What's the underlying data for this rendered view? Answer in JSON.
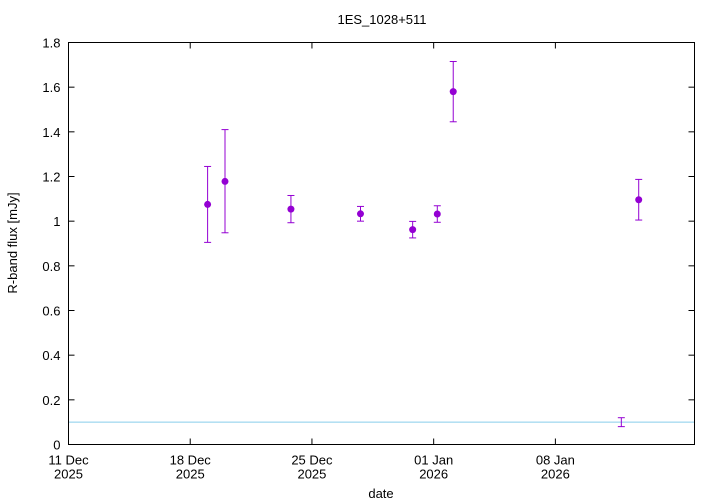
{
  "chart_data": {
    "type": "scatter",
    "title": "1ES_1028+511",
    "xlabel": "date",
    "ylabel": "R-band flux [mJy]",
    "xlim": [
      "2025-12-11",
      "2026-01-16"
    ],
    "ylim": [
      0,
      1.8
    ],
    "x_ticks": [
      {
        "date": "2025-12-11",
        "line1": "11 Dec",
        "line2": "2025"
      },
      {
        "date": "2025-12-18",
        "line1": "18 Dec",
        "line2": "2025"
      },
      {
        "date": "2025-12-25",
        "line1": "25 Dec",
        "line2": "2025"
      },
      {
        "date": "2026-01-01",
        "line1": "01 Jan",
        "line2": "2026"
      },
      {
        "date": "2026-01-08",
        "line1": "08 Jan",
        "line2": "2026"
      }
    ],
    "y_ticks": [
      {
        "value": 0,
        "label": "0"
      },
      {
        "value": 0.2,
        "label": "0.2"
      },
      {
        "value": 0.4,
        "label": "0.4"
      },
      {
        "value": 0.6,
        "label": "0.6"
      },
      {
        "value": 0.8,
        "label": "0.8"
      },
      {
        "value": 1.0,
        "label": "1"
      },
      {
        "value": 1.2,
        "label": "1.2"
      },
      {
        "value": 1.4,
        "label": "1.4"
      },
      {
        "value": 1.6,
        "label": "1.6"
      },
      {
        "value": 1.8,
        "label": "1.8"
      }
    ],
    "series": [
      {
        "color": "#9400d3",
        "marker": "filled-circle-with-errorbars",
        "points": [
          {
            "x": "2025-12-19T00:00",
            "y": 1.075,
            "ylow": 0.905,
            "yhigh": 1.245
          },
          {
            "x": "2025-12-20T00:00",
            "y": 1.178,
            "ylow": 0.948,
            "yhigh": 1.41
          },
          {
            "x": "2025-12-23T19:00",
            "y": 1.054,
            "ylow": 0.993,
            "yhigh": 1.115
          },
          {
            "x": "2025-12-27T19:00",
            "y": 1.033,
            "ylow": 1.0,
            "yhigh": 1.066
          },
          {
            "x": "2025-12-30T19:00",
            "y": 0.962,
            "ylow": 0.925,
            "yhigh": 0.999
          },
          {
            "x": "2026-01-01T05:00",
            "y": 1.032,
            "ylow": 0.995,
            "yhigh": 1.069
          },
          {
            "x": "2026-01-02T03:00",
            "y": 1.58,
            "ylow": 1.445,
            "yhigh": 1.715
          },
          {
            "x": "2026-01-12T19:00",
            "y": 1.096,
            "ylow": 1.005,
            "yhigh": 1.187
          }
        ]
      },
      {
        "color": "#9400d3",
        "marker": "errorbar-only",
        "points": [
          {
            "x": "2026-01-11T19:00",
            "y": 0.1,
            "ylow": 0.08,
            "yhigh": 0.12
          }
        ]
      }
    ],
    "hlines": [
      {
        "y": 0.1,
        "color": "#87ceeb"
      }
    ],
    "grid": false,
    "legend": "none"
  }
}
